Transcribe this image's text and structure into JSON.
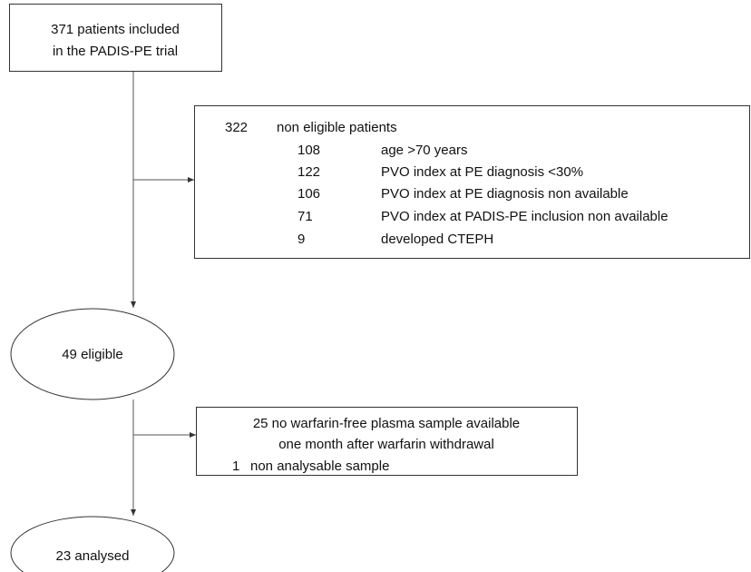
{
  "nodes": [
    {
      "lines": [
        "371 patients included",
        "in the PADIS-PE trial"
      ]
    },
    {
      "label": "49 eligible"
    },
    {
      "label": "23 analysed"
    }
  ],
  "exclusions": [
    {
      "count": 322,
      "label": "non eligible patients",
      "items": [
        {
          "count": 108,
          "label": "age >70 years"
        },
        {
          "count": 122,
          "label": "PVO index at PE diagnosis <30%"
        },
        {
          "count": 106,
          "label": "PVO index at PE diagnosis non available"
        },
        {
          "count": 71,
          "label": "PVO index at PADIS-PE inclusion non available"
        },
        {
          "count": 9,
          "label": "developed CTEPH"
        }
      ]
    },
    {
      "lines": [
        "25 no warfarin-free plasma sample available",
        "one month after warfarin withdrawal"
      ],
      "items": [
        {
          "count": 1,
          "label": "non analysable sample"
        }
      ]
    }
  ]
}
